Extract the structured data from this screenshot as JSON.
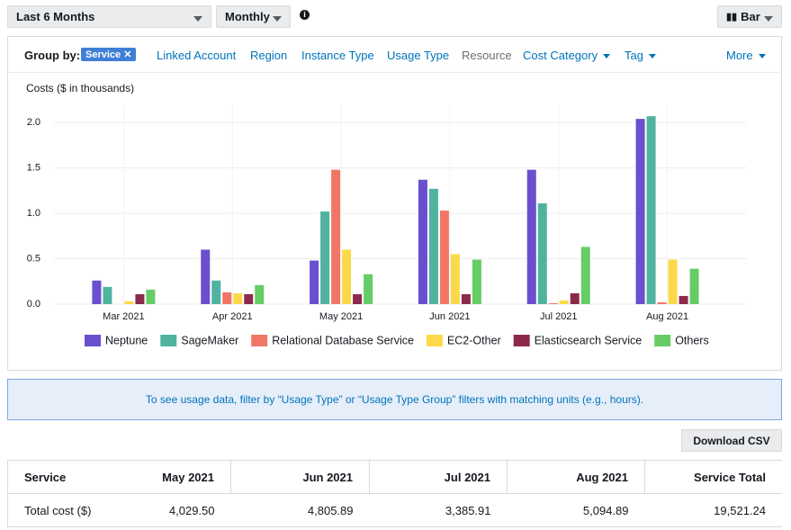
{
  "toolbar": {
    "range": "Last 6 Months",
    "granularity": "Monthly",
    "chart_style": "Bar"
  },
  "group_by": {
    "label": "Group by:",
    "selected": "Service",
    "options": [
      "Linked Account",
      "Region",
      "Instance Type",
      "Usage Type",
      "Resource",
      "Cost Category",
      "Tag"
    ],
    "more": "More"
  },
  "chart_data": {
    "type": "bar",
    "title": "Costs ($ in thousands)",
    "categories": [
      "Mar 2021",
      "Apr 2021",
      "May 2021",
      "Jun 2021",
      "Jul 2021",
      "Aug 2021"
    ],
    "series": [
      {
        "name": "Neptune",
        "color": "#6a4fcf",
        "values": [
          0.26,
          0.6,
          0.48,
          1.37,
          1.48,
          2.04
        ]
      },
      {
        "name": "SageMaker",
        "color": "#4fb3a0",
        "values": [
          0.19,
          0.26,
          1.02,
          1.27,
          1.11,
          2.07
        ]
      },
      {
        "name": "Relational Database Service",
        "color": "#f07766",
        "values": [
          0,
          0.13,
          1.48,
          1.03,
          0.01,
          0.02
        ]
      },
      {
        "name": "EC2-Other",
        "color": "#fcd94a",
        "values": [
          0.03,
          0.12,
          0.6,
          0.55,
          0.04,
          0.49
        ]
      },
      {
        "name": "Elasticsearch Service",
        "color": "#8c2a4d",
        "values": [
          0.11,
          0.11,
          0.11,
          0.11,
          0.12,
          0.09
        ]
      },
      {
        "name": "Others",
        "color": "#66cc66",
        "values": [
          0.16,
          0.21,
          0.33,
          0.49,
          0.63,
          0.39
        ]
      }
    ],
    "ylim": [
      0,
      2.2
    ],
    "yticks": [
      {
        "value": 0,
        "label": "0.0"
      },
      0.5,
      {
        "value": 1,
        "label": "1.0"
      },
      1.5,
      {
        "value": 2,
        "label": "2.0"
      }
    ],
    "grid": true
  },
  "banner": "To see usage data, filter by “Usage Type” or “Usage Type Group” filters with matching units (e.g., hours).",
  "download": "Download CSV",
  "table": {
    "header": [
      "Service",
      "May 2021",
      "Jun 2021",
      "Jul 2021",
      "Aug 2021",
      "Service Total"
    ],
    "rows": [
      [
        "Total cost ($)",
        "4,029.50",
        "4,805.89",
        "3,385.91",
        "5,094.89",
        "19,521.24"
      ]
    ]
  }
}
